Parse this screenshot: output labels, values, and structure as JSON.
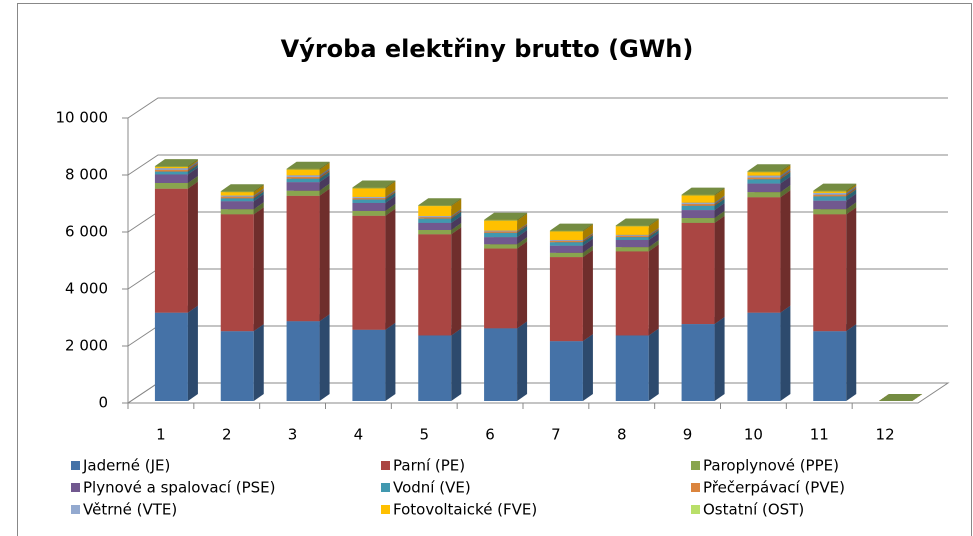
{
  "chart_data": {
    "type": "bar3d_stacked",
    "title": "Výroba elektřiny brutto (GWh)",
    "categories": [
      "1",
      "2",
      "3",
      "4",
      "5",
      "6",
      "7",
      "8",
      "9",
      "10",
      "11",
      "12"
    ],
    "series": [
      {
        "name": "Jaderné (JE)",
        "color": "#4572a7",
        "values": [
          3100,
          2450,
          2800,
          2500,
          2300,
          2550,
          2100,
          2300,
          2700,
          3100,
          2450,
          0
        ]
      },
      {
        "name": "Parní (PE)",
        "color": "#aa4643",
        "values": [
          4350,
          4100,
          4400,
          4000,
          3550,
          2800,
          2950,
          2950,
          3550,
          4050,
          4100,
          0
        ]
      },
      {
        "name": "Paroplynové (PPE)",
        "color": "#89a54e",
        "values": [
          200,
          180,
          180,
          170,
          150,
          150,
          150,
          150,
          170,
          180,
          180,
          0
        ]
      },
      {
        "name": "Plynové a spalovací (PSE)",
        "color": "#71588f",
        "values": [
          300,
          280,
          300,
          280,
          250,
          250,
          250,
          250,
          280,
          300,
          300,
          0
        ]
      },
      {
        "name": "Vodní (VE)",
        "color": "#4198af",
        "values": [
          100,
          100,
          120,
          120,
          150,
          150,
          120,
          100,
          150,
          150,
          150,
          0
        ]
      },
      {
        "name": "Přečerpávací (PVE)",
        "color": "#db843d",
        "values": [
          60,
          60,
          60,
          50,
          50,
          50,
          50,
          50,
          60,
          60,
          60,
          0
        ]
      },
      {
        "name": "Větrné (VTE)",
        "color": "#93a9cf",
        "values": [
          60,
          40,
          60,
          40,
          40,
          30,
          30,
          30,
          50,
          70,
          60,
          0
        ]
      },
      {
        "name": "Fotovoltaické (FVE)",
        "color": "#ffc000",
        "values": [
          40,
          120,
          200,
          300,
          350,
          350,
          300,
          300,
          250,
          120,
          50,
          0
        ]
      },
      {
        "name": "Ostatní (OST)",
        "color": "#89a54e",
        "values": [
          30,
          30,
          30,
          30,
          30,
          30,
          30,
          30,
          30,
          30,
          30,
          0
        ]
      }
    ],
    "ylim": [
      0,
      10000
    ],
    "yticks": [
      0,
      {
        "value": 2000,
        "label": "2 000"
      },
      {
        "value": 4000,
        "label": "4 000"
      },
      {
        "value": 6000,
        "label": "6 000"
      },
      {
        "value": 8000,
        "label": "8 000"
      },
      {
        "value": 10000,
        "label": "10 000"
      }
    ],
    "grid": true,
    "legend": "bottom"
  }
}
